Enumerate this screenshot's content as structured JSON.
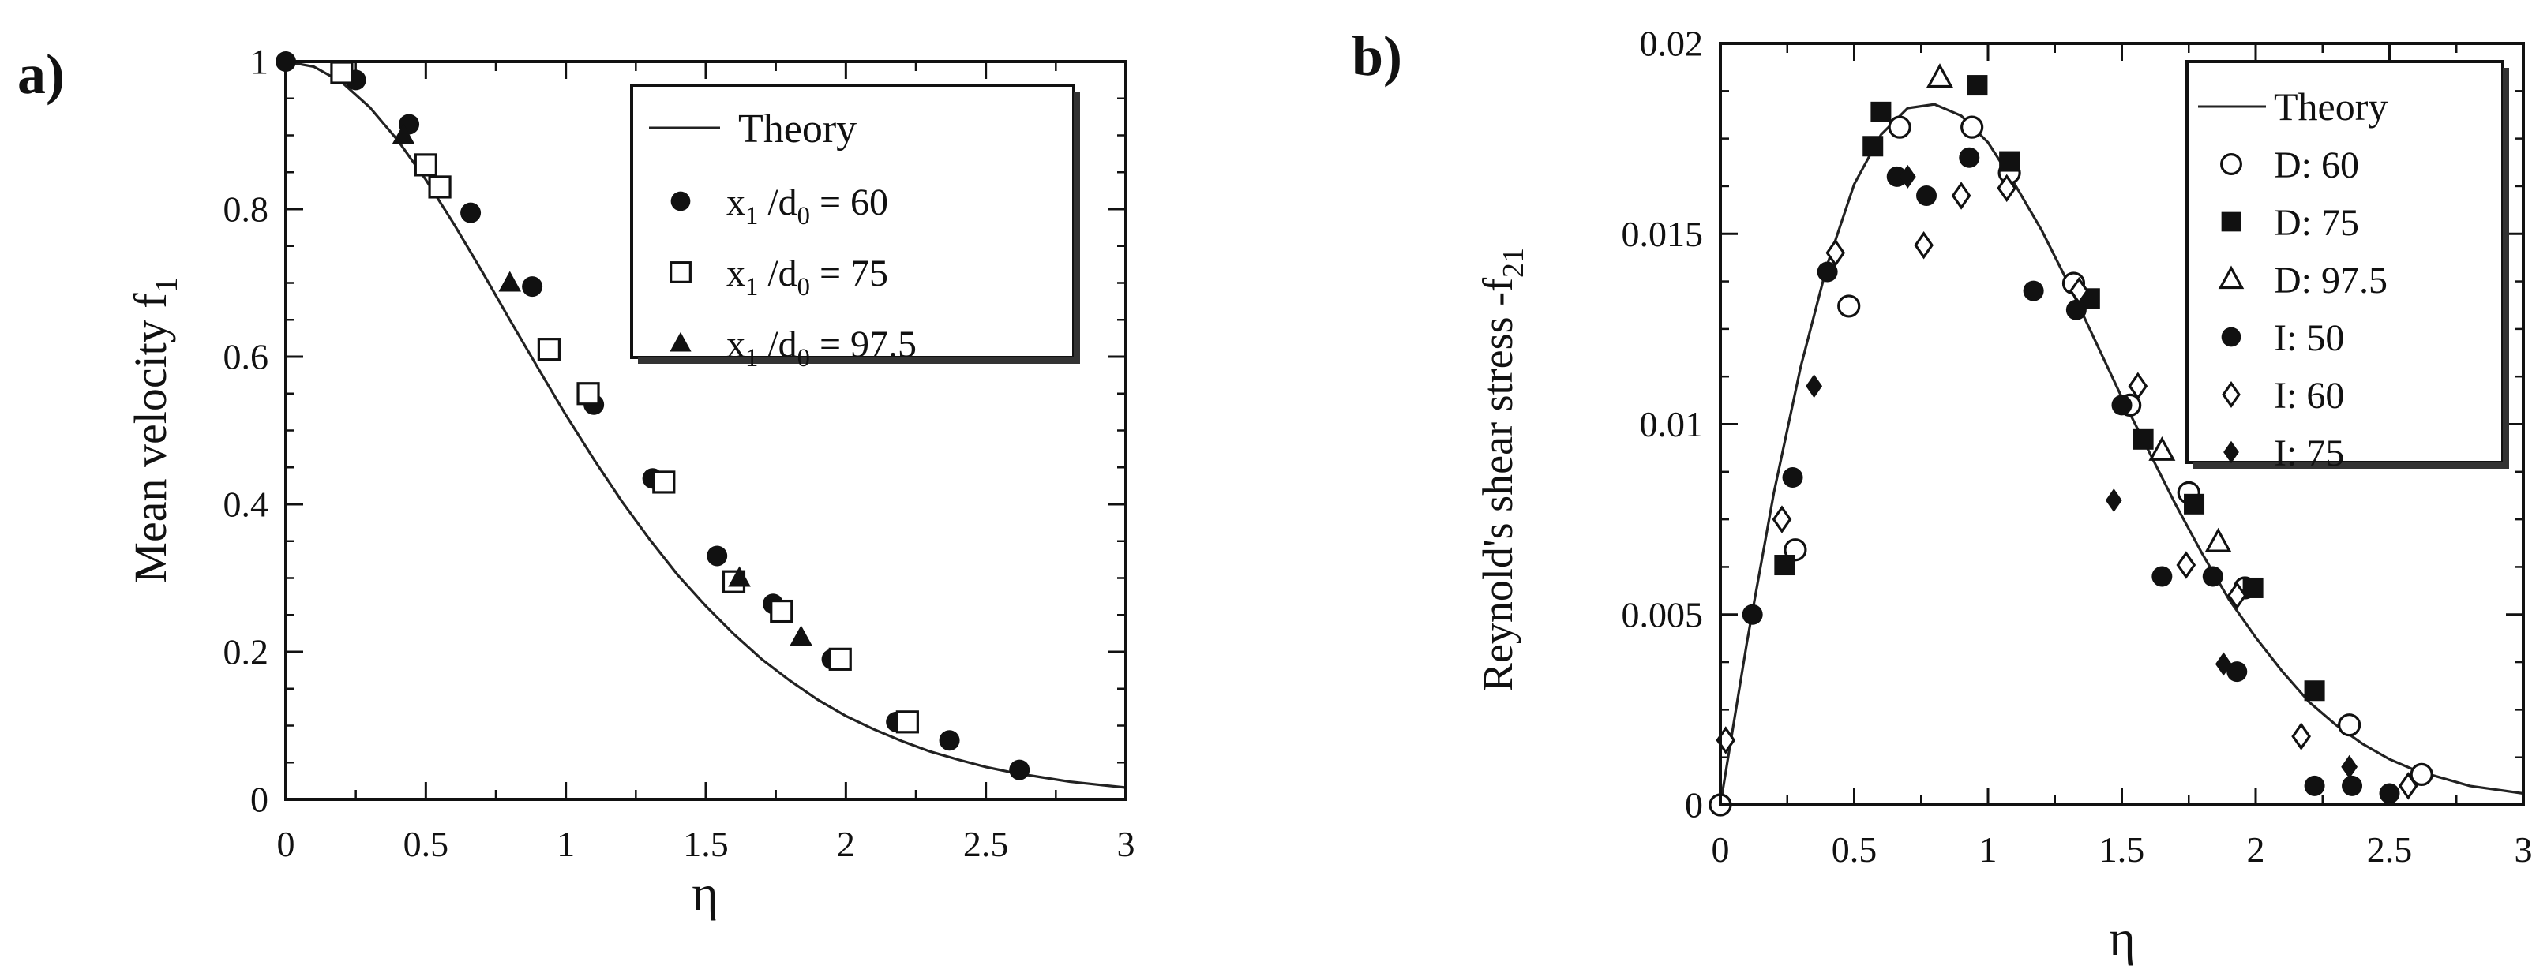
{
  "chart_data": [
    {
      "panel_label": "a)",
      "type": "scatter",
      "xlabel": "η",
      "ylabel": "Mean velocity f",
      "ylabel_sub": "1",
      "xlim": [
        0,
        3
      ],
      "ylim": [
        0,
        1
      ],
      "xticks": [
        "0",
        "0.5",
        "1",
        "1.5",
        "2",
        "2.5",
        "3"
      ],
      "xtick_values": [
        0,
        0.5,
        1,
        1.5,
        2,
        2.5,
        3
      ],
      "yticks": [
        "0",
        "0.2",
        "0.4",
        "0.6",
        "0.8",
        "1"
      ],
      "ytick_values": [
        0,
        0.2,
        0.4,
        0.6,
        0.8,
        1
      ],
      "theory": {
        "name": "Theory",
        "x": [
          0,
          0.1,
          0.2,
          0.3,
          0.4,
          0.5,
          0.6,
          0.7,
          0.8,
          0.9,
          1.0,
          1.1,
          1.2,
          1.3,
          1.4,
          1.5,
          1.6,
          1.7,
          1.8,
          1.9,
          2.0,
          2.1,
          2.2,
          2.3,
          2.4,
          2.5,
          2.6,
          2.7,
          2.8,
          2.9,
          3.0
        ],
        "y": [
          1.0,
          0.993,
          0.972,
          0.938,
          0.893,
          0.84,
          0.78,
          0.716,
          0.65,
          0.585,
          0.521,
          0.461,
          0.404,
          0.352,
          0.304,
          0.262,
          0.224,
          0.19,
          0.161,
          0.135,
          0.113,
          0.095,
          0.079,
          0.065,
          0.054,
          0.044,
          0.036,
          0.03,
          0.024,
          0.02,
          0.016
        ]
      },
      "series": [
        {
          "name": "x₁ /d₀ = 60",
          "label_main": "x",
          "label_sub1": "1",
          "label_mid": " /d",
          "label_sub2": "0",
          "label_value": " = 60",
          "marker": "filled-circle",
          "x": [
            0,
            0.25,
            0.44,
            0.66,
            0.88,
            1.1,
            1.31,
            1.54,
            1.74,
            1.95,
            2.18,
            2.37,
            2.62
          ],
          "y": [
            1.0,
            0.975,
            0.915,
            0.795,
            0.695,
            0.535,
            0.435,
            0.33,
            0.265,
            0.19,
            0.105,
            0.08,
            0.04
          ]
        },
        {
          "name": "x₁ /d₀ = 75",
          "label_main": "x",
          "label_sub1": "1",
          "label_mid": " /d",
          "label_sub2": "0",
          "label_value": " = 75",
          "marker": "open-square",
          "x": [
            0.2,
            0.5,
            0.55,
            0.94,
            1.08,
            1.35,
            1.6,
            1.77,
            1.98,
            2.22
          ],
          "y": [
            0.985,
            0.86,
            0.83,
            0.61,
            0.55,
            0.43,
            0.295,
            0.255,
            0.19,
            0.105
          ]
        },
        {
          "name": "x₁ /d₀ = 97.5",
          "label_main": "x",
          "label_sub1": "1",
          "label_mid": " /d",
          "label_sub2": "0",
          "label_value": " = 97.5",
          "marker": "filled-triangle",
          "x": [
            0.42,
            0.8,
            1.62,
            1.84
          ],
          "y": [
            0.9,
            0.7,
            0.3,
            0.22
          ]
        }
      ]
    },
    {
      "panel_label": "b)",
      "type": "scatter",
      "xlabel": "η",
      "ylabel": "Reynold's  shear stress -f",
      "ylabel_sub": "21",
      "xlim": [
        0,
        3
      ],
      "ylim": [
        0,
        0.02
      ],
      "xticks": [
        "0",
        "0.5",
        "1",
        "1.5",
        "2",
        "2.5",
        "3"
      ],
      "xtick_values": [
        0,
        0.5,
        1,
        1.5,
        2,
        2.5,
        3
      ],
      "yticks": [
        "0",
        "0.005",
        "0.01",
        "0.015",
        "0.02"
      ],
      "ytick_values": [
        0,
        0.005,
        0.01,
        0.015,
        0.02
      ],
      "theory": {
        "name": "Theory",
        "x": [
          0,
          0.1,
          0.2,
          0.3,
          0.4,
          0.5,
          0.6,
          0.7,
          0.8,
          0.9,
          1.0,
          1.1,
          1.2,
          1.3,
          1.4,
          1.5,
          1.6,
          1.7,
          1.8,
          1.9,
          2.0,
          2.1,
          2.2,
          2.3,
          2.4,
          2.5,
          2.6,
          2.7,
          2.8,
          2.9,
          3.0
        ],
        "y": [
          0,
          0.0043,
          0.0082,
          0.0115,
          0.0142,
          0.0163,
          0.0176,
          0.0183,
          0.0184,
          0.0181,
          0.0174,
          0.0163,
          0.0151,
          0.0137,
          0.0122,
          0.0107,
          0.0093,
          0.0079,
          0.0066,
          0.0054,
          0.0044,
          0.0035,
          0.0027,
          0.0021,
          0.0016,
          0.0012,
          0.0009,
          0.0007,
          0.0005,
          0.0004,
          0.0003
        ]
      },
      "series": [
        {
          "name": "D: 60",
          "marker": "open-circle",
          "x": [
            0,
            0.28,
            0.48,
            0.67,
            0.94,
            1.08,
            1.32,
            1.53,
            1.75,
            1.96,
            2.35,
            2.62
          ],
          "y": [
            0,
            0.0067,
            0.0131,
            0.0178,
            0.0178,
            0.0166,
            0.0137,
            0.0105,
            0.0082,
            0.0057,
            0.0021,
            0.0008
          ]
        },
        {
          "name": "D: 75",
          "marker": "filled-square",
          "x": [
            0.24,
            0.57,
            0.6,
            0.96,
            1.08,
            1.38,
            1.58,
            1.77,
            1.99,
            2.22
          ],
          "y": [
            0.0063,
            0.0173,
            0.0182,
            0.0189,
            0.0169,
            0.0133,
            0.0096,
            0.0079,
            0.0057,
            0.003
          ]
        },
        {
          "name": "D: 97.5",
          "marker": "open-triangle",
          "x": [
            0.82,
            1.65,
            1.86
          ],
          "y": [
            0.0191,
            0.0093,
            0.0069
          ]
        },
        {
          "name": "I:  50",
          "marker": "filled-circle",
          "x": [
            0.12,
            0.27,
            0.4,
            0.66,
            0.77,
            0.93,
            1.17,
            1.33,
            1.5,
            1.65,
            1.84,
            1.93,
            2.22,
            2.36,
            2.5
          ],
          "y": [
            0.005,
            0.0086,
            0.014,
            0.0165,
            0.016,
            0.017,
            0.0135,
            0.013,
            0.0105,
            0.006,
            0.006,
            0.0035,
            0.0005,
            0.0005,
            0.0003
          ]
        },
        {
          "name": "I:  60",
          "marker": "open-diamond",
          "x": [
            0.02,
            0.23,
            0.43,
            0.76,
            0.9,
            1.07,
            1.34,
            1.56,
            1.74,
            1.93,
            2.17,
            2.57
          ],
          "y": [
            0.0017,
            0.0075,
            0.0145,
            0.0147,
            0.016,
            0.0162,
            0.0135,
            0.011,
            0.0063,
            0.0055,
            0.0018,
            0.0005
          ]
        },
        {
          "name": "I:  75",
          "marker": "filled-diamond",
          "x": [
            0.35,
            0.7,
            1.47,
            1.88,
            2.35
          ],
          "y": [
            0.011,
            0.0165,
            0.008,
            0.0037,
            0.001
          ]
        }
      ]
    }
  ]
}
